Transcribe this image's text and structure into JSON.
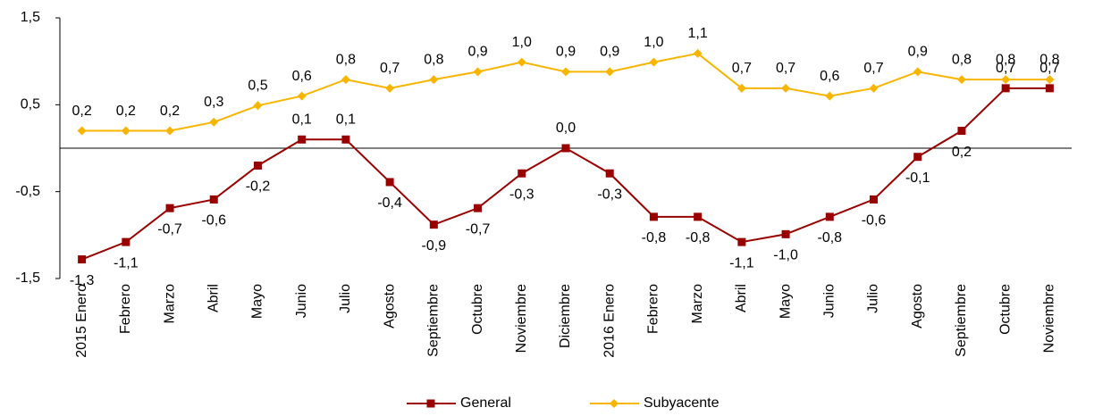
{
  "chart_data": {
    "type": "line",
    "categories": [
      "2015 Enero",
      "Febrero",
      "Marzo",
      "Abril",
      "Mayo",
      "Junio",
      "Julio",
      "Agosto",
      "Septiembre",
      "Octubre",
      "Noviembre",
      "Diciembre",
      "2016 Enero",
      "Febrero",
      "Marzo",
      "Abril",
      "Mayo",
      "Junio",
      "Julio",
      "Agosto",
      "Septiembre",
      "Octubre",
      "Noviembre"
    ],
    "series": [
      {
        "name": "General",
        "color": "#990000",
        "marker": "square",
        "values": [
          -1.28,
          -1.08,
          -0.69,
          -0.59,
          -0.2,
          0.1,
          0.1,
          -0.39,
          -0.88,
          -0.69,
          -0.29,
          0,
          -0.29,
          -0.79,
          -0.79,
          -1.08,
          -0.99,
          -0.79,
          -0.59,
          -0.1,
          0.2,
          0.69,
          0.69
        ],
        "value_labels": [
          "-1,3",
          "-1,1",
          "-0,7",
          "-0,6",
          "-0,2",
          "0,1",
          "0,1",
          "-0,4",
          "-0,9",
          "-0,7",
          "-0,3",
          "0,0",
          "-0,3",
          "-0,8",
          "-0,8",
          "-1,1",
          "-1,0",
          "-0,8",
          "-0,6",
          "-0,1",
          "0,2",
          "0,7",
          "0,7"
        ]
      },
      {
        "name": "Subyacente",
        "color": "#f7b500",
        "marker": "diamond",
        "values": [
          0.2,
          0.2,
          0.2,
          0.3,
          0.49,
          0.6,
          0.79,
          0.69,
          0.79,
          0.88,
          0.99,
          0.88,
          0.88,
          0.99,
          1.09,
          0.69,
          0.69,
          0.6,
          0.69,
          0.88,
          0.79,
          0.79,
          0.79
        ],
        "value_labels": [
          "0,2",
          "0,2",
          "0,2",
          "0,3",
          "0,5",
          "0,6",
          "0,8",
          "0,7",
          "0,8",
          "0,9",
          "1,0",
          "0,9",
          "0,9",
          "1,0",
          "1,1",
          "0,7",
          "0,7",
          "0,6",
          "0,7",
          "0,9",
          "0,8",
          "0,8",
          "0,8"
        ]
      }
    ],
    "ylim": [
      -1.5,
      1.5
    ],
    "yticks": [
      {
        "value": -1.5,
        "label": "-1,5"
      },
      {
        "value": -0.5,
        "label": "-0,5"
      },
      {
        "value": 0.5,
        "label": "0,5"
      },
      {
        "value": 1.5,
        "label": "1,5"
      }
    ],
    "legend": "bottom"
  }
}
